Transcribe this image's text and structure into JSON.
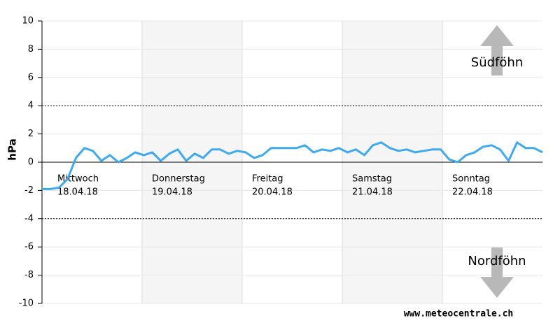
{
  "chart_data": {
    "type": "line",
    "y_label": "hPa",
    "ylim": [
      -10,
      10
    ],
    "yticks": [
      -10,
      -8,
      -6,
      -4,
      -2,
      0,
      2,
      4,
      6,
      8,
      10
    ],
    "thresholds": [
      4,
      -4
    ],
    "days": [
      {
        "name": "Mittwoch",
        "date": "18.04.18"
      },
      {
        "name": "Donnerstag",
        "date": "19.04.18"
      },
      {
        "name": "Freitag",
        "date": "20.04.18"
      },
      {
        "name": "Samstag",
        "date": "21.04.18"
      },
      {
        "name": "Sonntag",
        "date": "22.04.18"
      }
    ],
    "shaded_days": [
      1,
      3
    ],
    "series": [
      {
        "color": "#3fa9f0",
        "values": [
          -1.9,
          -1.9,
          -1.8,
          -1.2,
          0.3,
          1.0,
          0.8,
          0.1,
          0.5,
          0.0,
          0.3,
          0.7,
          0.5,
          0.7,
          0.1,
          0.6,
          0.9,
          0.1,
          0.6,
          0.3,
          0.9,
          0.9,
          0.6,
          0.8,
          0.7,
          0.3,
          0.5,
          1.0,
          1.0,
          1.0,
          1.0,
          1.2,
          0.7,
          0.9,
          0.8,
          1.0,
          0.7,
          0.9,
          0.5,
          1.2,
          1.4,
          1.0,
          0.8,
          0.9,
          0.7,
          0.8,
          0.9,
          0.9,
          0.2,
          0.0,
          0.5,
          0.7,
          1.1,
          1.2,
          0.9,
          0.1,
          1.4,
          1.0,
          1.0,
          0.7
        ]
      }
    ],
    "annotations": {
      "upper": "Südföhn",
      "lower": "Nordföhn",
      "source": "www.meteocentrale.ch"
    }
  }
}
